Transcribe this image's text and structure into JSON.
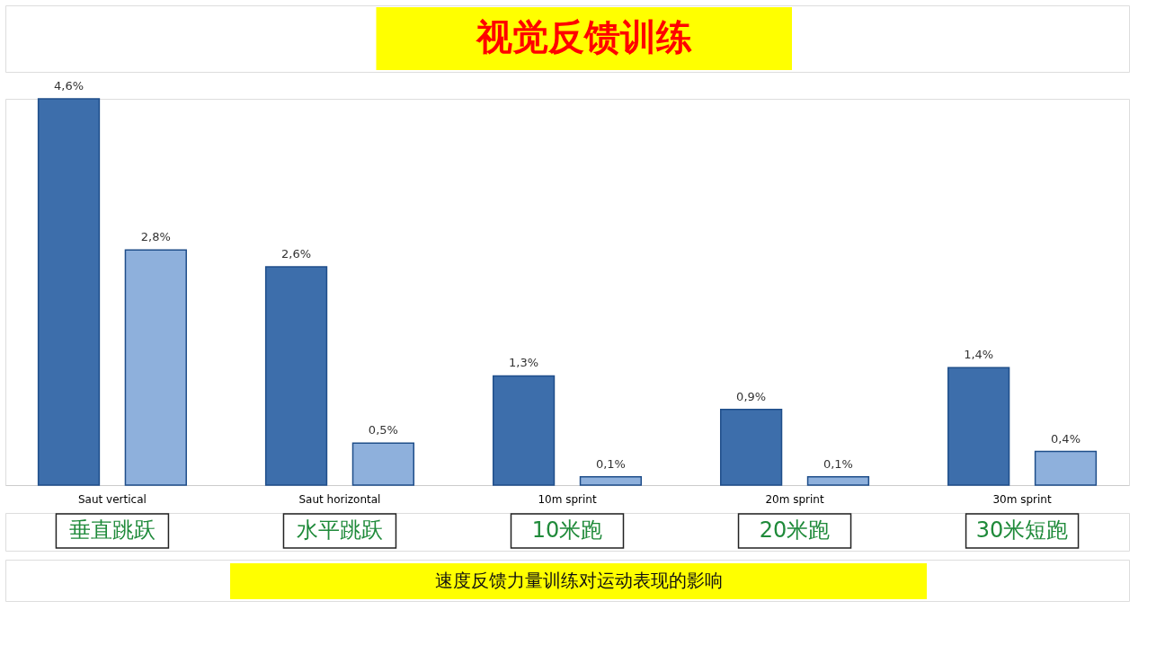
{
  "chart_data": {
    "type": "bar",
    "title": "视觉反馈训练",
    "categories": [
      "Saut vertical",
      "Saut horizontal",
      "10m sprint",
      "20m sprint",
      "30m sprint"
    ],
    "series": [
      {
        "color": "#3d6eab",
        "values": [
          4.6,
          2.6,
          1.3,
          0.9,
          1.4
        ],
        "value_labels": [
          "4,6%",
          "2,6%",
          "1,3%",
          "0,9%",
          "1,4%"
        ]
      },
      {
        "color": "#8eb0dc",
        "values": [
          2.8,
          0.5,
          0.1,
          0.1,
          0.4
        ],
        "value_labels": [
          "2,8%",
          "0,5%",
          "0,1%",
          "0,1%",
          "0,4%"
        ]
      }
    ],
    "annotations": [
      "垂直跳跃",
      "水平跳跃",
      "10米跑",
      "20米跑",
      "30米短跑",
      "速度反馈力量训练对运动表现的影响"
    ]
  }
}
